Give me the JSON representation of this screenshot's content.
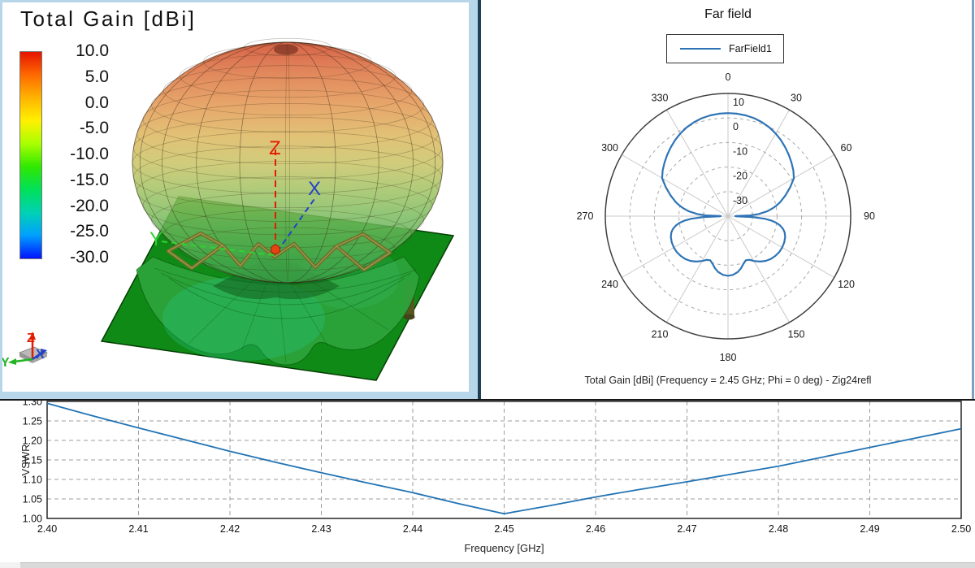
{
  "panel_3d": {
    "title": "Total Gain [dBi]",
    "colorbar": {
      "labels": [
        "10.0",
        "5.0",
        "0.0",
        "-5.0",
        "-10.0",
        "-15.0",
        "-20.0",
        "-25.0",
        "-30.0"
      ],
      "gradient": [
        "#e61400",
        "#ff6a00",
        "#ffb400",
        "#fff000",
        "#a8ff00",
        "#30e800",
        "#00e05a",
        "#00d2b4",
        "#00a0ff",
        "#0014ff"
      ]
    },
    "axes": {
      "x": "X",
      "y": "Y",
      "z": "Z"
    },
    "triad": {
      "x": "X",
      "y": "Y",
      "z": "Z"
    },
    "colors": {
      "x_axis": "#2543c4",
      "y_axis": "#2fd32f",
      "z_axis": "#e41b00",
      "ground_plane": "#108a16"
    }
  },
  "panel_polar": {
    "title": "Far field",
    "legend": {
      "label": "FarField1",
      "line_color": "#2e74b5"
    },
    "caption": "Total Gain [dBi] (Frequency = 2.45 GHz; Phi = 0 deg) - Zig24refl"
  },
  "chart_data": [
    {
      "type": "polar-line",
      "title": "Far field",
      "series_name": "FarField1",
      "color": "#2e74b5",
      "angle_ticks_deg": [
        0,
        30,
        60,
        90,
        120,
        150,
        180,
        210,
        240,
        270,
        300,
        330
      ],
      "radial_ticks_dbi": [
        10,
        0,
        -10,
        -20,
        -30
      ],
      "r_range_dbi": [
        -40,
        10
      ],
      "points_theta_gain": [
        [
          0,
          2
        ],
        [
          5,
          1.9
        ],
        [
          10,
          1.7
        ],
        [
          15,
          1.3
        ],
        [
          20,
          0.7
        ],
        [
          25,
          -0.1
        ],
        [
          30,
          -1.1
        ],
        [
          35,
          -2.3
        ],
        [
          40,
          -3.6
        ],
        [
          45,
          -4.9
        ],
        [
          50,
          -6.2
        ],
        [
          55,
          -7.5
        ],
        [
          60,
          -9
        ],
        [
          65,
          -12
        ],
        [
          70,
          -15
        ],
        [
          75,
          -18
        ],
        [
          78,
          -20
        ],
        [
          80,
          -21.5
        ],
        [
          83,
          -24
        ],
        [
          86,
          -27.5
        ],
        [
          88,
          -31
        ],
        [
          89.5,
          -37
        ],
        [
          90.5,
          -37
        ],
        [
          92,
          -30
        ],
        [
          94,
          -25
        ],
        [
          96,
          -22
        ],
        [
          98,
          -20
        ],
        [
          100,
          -18.5
        ],
        [
          103,
          -17
        ],
        [
          106,
          -16
        ],
        [
          110,
          -15.2
        ],
        [
          115,
          -14.7
        ],
        [
          120,
          -14.5
        ],
        [
          125,
          -14.5
        ],
        [
          130,
          -14.8
        ],
        [
          135,
          -15.3
        ],
        [
          140,
          -16.2
        ],
        [
          145,
          -17.4
        ],
        [
          150,
          -18.9
        ],
        [
          154,
          -20.2
        ],
        [
          158,
          -20.6
        ],
        [
          162,
          -19.6
        ],
        [
          166,
          -18.1
        ],
        [
          170,
          -16.9
        ],
        [
          175,
          -16
        ],
        [
          180,
          -15.7
        ],
        [
          185,
          -16
        ],
        [
          190,
          -16.9
        ],
        [
          194,
          -18.1
        ],
        [
          198,
          -19.6
        ],
        [
          202,
          -20.6
        ],
        [
          206,
          -20.2
        ],
        [
          210,
          -18.9
        ],
        [
          215,
          -17.4
        ],
        [
          220,
          -16.2
        ],
        [
          225,
          -15.3
        ],
        [
          230,
          -14.8
        ],
        [
          235,
          -14.5
        ],
        [
          240,
          -14.5
        ],
        [
          245,
          -14.7
        ],
        [
          250,
          -15.2
        ],
        [
          254,
          -16
        ],
        [
          257,
          -17
        ],
        [
          260,
          -18.5
        ],
        [
          262,
          -20
        ],
        [
          264,
          -22
        ],
        [
          266,
          -25
        ],
        [
          268,
          -30
        ],
        [
          269.5,
          -37
        ],
        [
          270.5,
          -37
        ],
        [
          272,
          -31
        ],
        [
          274,
          -27.5
        ],
        [
          277,
          -24
        ],
        [
          280,
          -21.5
        ],
        [
          282,
          -20
        ],
        [
          285,
          -18
        ],
        [
          290,
          -15
        ],
        [
          295,
          -12
        ],
        [
          300,
          -9
        ],
        [
          305,
          -7.5
        ],
        [
          310,
          -6.2
        ],
        [
          315,
          -4.9
        ],
        [
          320,
          -3.6
        ],
        [
          325,
          -2.3
        ],
        [
          330,
          -1.1
        ],
        [
          335,
          -0.1
        ],
        [
          340,
          0.7
        ],
        [
          345,
          1.3
        ],
        [
          350,
          1.7
        ],
        [
          355,
          1.9
        ]
      ]
    },
    {
      "type": "line",
      "title": "",
      "xlabel": "Frequency [GHz]",
      "ylabel": "VSWR",
      "xlim": [
        2.4,
        2.5
      ],
      "ylim": [
        1.0,
        1.3
      ],
      "x_ticks": [
        "2.40",
        "2.41",
        "2.42",
        "2.43",
        "2.44",
        "2.45",
        "2.46",
        "2.47",
        "2.48",
        "2.49",
        "2.50"
      ],
      "y_ticks": [
        "1.00",
        "1.05",
        "1.10",
        "1.15",
        "1.20",
        "1.25",
        "1.30"
      ],
      "grid": "dashed",
      "series": [
        {
          "name": "VSWR",
          "color": "#2273b4",
          "x": [
            2.4,
            2.405,
            2.41,
            2.415,
            2.42,
            2.425,
            2.43,
            2.435,
            2.44,
            2.445,
            2.45,
            2.455,
            2.46,
            2.465,
            2.47,
            2.475,
            2.48,
            2.485,
            2.49,
            2.495,
            2.5
          ],
          "y": [
            1.295,
            1.263,
            1.232,
            1.202,
            1.172,
            1.144,
            1.117,
            1.091,
            1.066,
            1.038,
            1.012,
            1.033,
            1.055,
            1.075,
            1.094,
            1.114,
            1.134,
            1.158,
            1.182,
            1.206,
            1.23
          ]
        }
      ]
    }
  ]
}
